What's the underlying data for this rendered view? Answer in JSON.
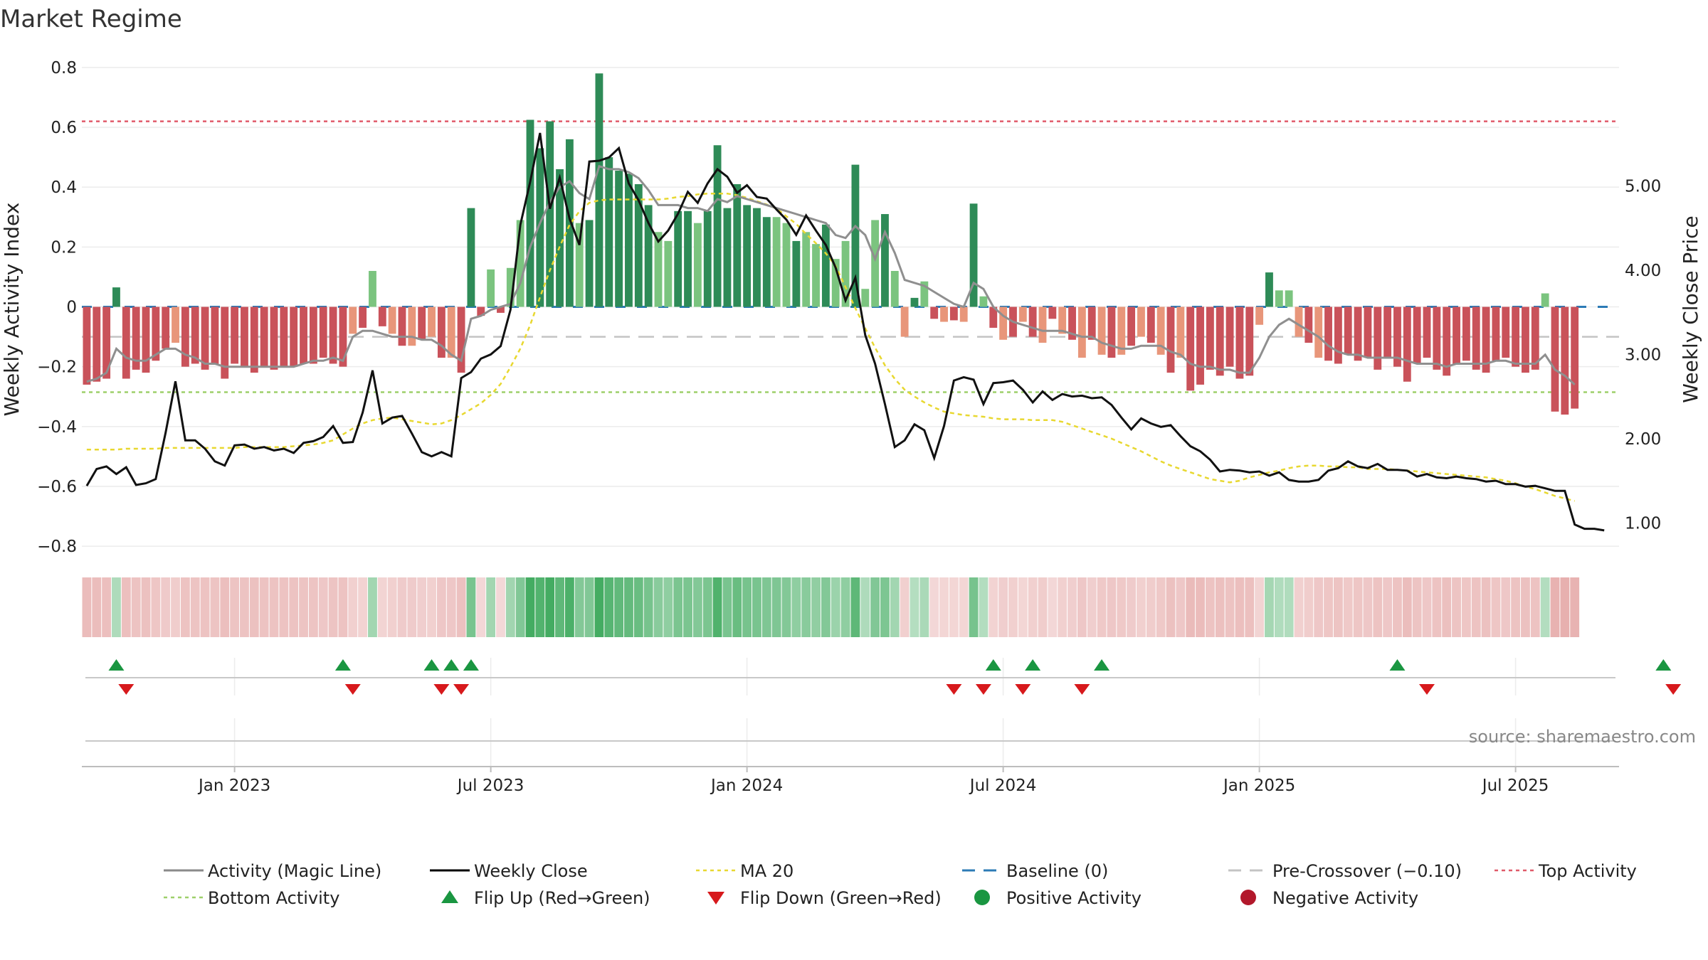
{
  "chart_data": {
    "title": "Market Regime",
    "source": "source: sharemaestro.com",
    "y_left_label": "Weekly Activity Index",
    "y_right_label": "Weekly Close Price",
    "y_left_ticks": [
      "0.8",
      "0.6",
      "0.4",
      "0.2",
      "0",
      "−0.2",
      "−0.4",
      "−0.6",
      "−0.8"
    ],
    "y_left_tick_values": [
      0.8,
      0.6,
      0.4,
      0.2,
      0,
      -0.2,
      -0.4,
      -0.6,
      -0.8
    ],
    "y_left_range": [
      -0.84,
      0.84
    ],
    "y_right_ticks": [
      "5.00",
      "4.00",
      "3.00",
      "2.00",
      "1.00"
    ],
    "y_right_tick_values": [
      5,
      4,
      3,
      2,
      1
    ],
    "y_right_range": [
      0.58,
      6.55
    ],
    "x_ticks": [
      "Jan 2023",
      "Jul 2023",
      "Jan 2024",
      "Jul 2024",
      "Jan 2025",
      "Jul 2025"
    ],
    "x_tick_weeks": [
      30,
      56,
      82,
      108,
      134,
      160
    ],
    "week_count": 156,
    "first_week_index": 15,
    "reference_lines": {
      "top_activity": 0.62,
      "bottom_activity": -0.285,
      "pre_crossover": -0.1,
      "baseline": 0
    },
    "activity": [
      -0.26,
      -0.25,
      -0.24,
      0.065,
      -0.24,
      -0.21,
      -0.22,
      -0.18,
      -0.14,
      -0.12,
      -0.2,
      -0.19,
      -0.21,
      -0.19,
      -0.24,
      -0.19,
      -0.2,
      -0.22,
      -0.2,
      -0.21,
      -0.2,
      -0.2,
      -0.19,
      -0.19,
      -0.17,
      -0.19,
      -0.2,
      -0.09,
      -0.07,
      0.12,
      -0.065,
      -0.09,
      -0.13,
      -0.13,
      -0.11,
      -0.1,
      -0.17,
      -0.17,
      -0.22,
      0.33,
      -0.03,
      0.125,
      -0.02,
      0.13,
      0.29,
      0.625,
      0.53,
      0.62,
      0.46,
      0.56,
      0.28,
      0.29,
      0.78,
      0.5,
      0.455,
      0.445,
      0.41,
      0.34,
      0.25,
      0.22,
      0.32,
      0.32,
      0.28,
      0.32,
      0.54,
      0.33,
      0.41,
      0.34,
      0.33,
      0.3,
      0.3,
      0.28,
      0.22,
      0.25,
      0.21,
      0.275,
      0.16,
      0.22,
      0.475,
      0.06,
      0.29,
      0.31,
      0.12,
      -0.1,
      0.03,
      0.085,
      -0.04,
      -0.05,
      -0.045,
      -0.05,
      0.345,
      0.035,
      -0.07,
      -0.11,
      -0.1,
      -0.05,
      -0.1,
      -0.12,
      -0.04,
      -0.09,
      -0.11,
      -0.17,
      -0.11,
      -0.16,
      -0.17,
      -0.16,
      -0.13,
      -0.1,
      -0.12,
      -0.16,
      -0.22,
      -0.17,
      -0.28,
      -0.26,
      -0.21,
      -0.23,
      -0.2,
      -0.24,
      -0.23,
      -0.06,
      0.115,
      0.055,
      0.055,
      -0.1,
      -0.12,
      -0.17,
      -0.18,
      -0.19,
      -0.16,
      -0.18,
      -0.17,
      -0.21,
      -0.17,
      -0.2,
      -0.25,
      -0.19,
      -0.17,
      -0.21,
      -0.23,
      -0.19,
      -0.18,
      -0.21,
      -0.22,
      -0.18,
      -0.17,
      -0.2,
      -0.22,
      -0.21,
      0.045,
      -0.35,
      -0.36,
      -0.34
    ],
    "magic_line": [
      -0.25,
      -0.24,
      -0.22,
      -0.14,
      -0.17,
      -0.18,
      -0.18,
      -0.16,
      -0.14,
      -0.14,
      -0.16,
      -0.17,
      -0.19,
      -0.19,
      -0.2,
      -0.2,
      -0.2,
      -0.2,
      -0.2,
      -0.2,
      -0.2,
      -0.2,
      -0.19,
      -0.18,
      -0.18,
      -0.17,
      -0.18,
      -0.1,
      -0.08,
      -0.08,
      -0.09,
      -0.1,
      -0.1,
      -0.1,
      -0.11,
      -0.11,
      -0.13,
      -0.16,
      -0.18,
      -0.04,
      -0.03,
      -0.01,
      0.0,
      0.01,
      0.08,
      0.2,
      0.28,
      0.35,
      0.4,
      0.42,
      0.38,
      0.36,
      0.47,
      0.46,
      0.46,
      0.45,
      0.43,
      0.39,
      0.34,
      0.34,
      0.34,
      0.33,
      0.33,
      0.32,
      0.36,
      0.35,
      0.37,
      0.36,
      0.35,
      0.34,
      0.33,
      0.32,
      0.31,
      0.3,
      0.29,
      0.28,
      0.24,
      0.23,
      0.27,
      0.24,
      0.16,
      0.25,
      0.18,
      0.09,
      0.08,
      0.07,
      0.05,
      0.03,
      0.01,
      0.0,
      0.08,
      0.06,
      0.0,
      -0.03,
      -0.05,
      -0.06,
      -0.07,
      -0.08,
      -0.08,
      -0.08,
      -0.09,
      -0.1,
      -0.1,
      -0.12,
      -0.13,
      -0.14,
      -0.14,
      -0.13,
      -0.13,
      -0.13,
      -0.15,
      -0.16,
      -0.19,
      -0.2,
      -0.2,
      -0.21,
      -0.21,
      -0.22,
      -0.22,
      -0.17,
      -0.1,
      -0.06,
      -0.04,
      -0.06,
      -0.08,
      -0.1,
      -0.13,
      -0.15,
      -0.16,
      -0.16,
      -0.17,
      -0.17,
      -0.17,
      -0.17,
      -0.18,
      -0.19,
      -0.19,
      -0.19,
      -0.2,
      -0.19,
      -0.19,
      -0.19,
      -0.19,
      -0.18,
      -0.18,
      -0.19,
      -0.19,
      -0.19,
      -0.16,
      -0.21,
      -0.23,
      -0.26
    ],
    "weekly_close": [
      1.44,
      1.64,
      1.67,
      1.58,
      1.66,
      1.45,
      1.47,
      1.52,
      2.07,
      2.68,
      1.98,
      1.98,
      1.88,
      1.73,
      1.68,
      1.92,
      1.93,
      1.88,
      1.9,
      1.86,
      1.88,
      1.83,
      1.95,
      1.97,
      2.02,
      2.15,
      1.95,
      1.96,
      2.31,
      2.81,
      2.18,
      2.25,
      2.27,
      2.06,
      1.84,
      1.79,
      1.84,
      1.79,
      2.72,
      2.79,
      2.95,
      3.0,
      3.1,
      3.53,
      4.54,
      5.05,
      5.63,
      4.73,
      5.1,
      4.61,
      4.3,
      5.29,
      5.3,
      5.34,
      5.45,
      5.03,
      4.83,
      4.56,
      4.34,
      4.47,
      4.67,
      4.93,
      4.8,
      5.03,
      5.2,
      5.11,
      4.92,
      5.01,
      4.87,
      4.85,
      4.72,
      4.6,
      4.42,
      4.65,
      4.47,
      4.3,
      4.03,
      3.64,
      3.91,
      3.23,
      2.89,
      2.41,
      1.9,
      1.98,
      2.17,
      2.1,
      1.77,
      2.15,
      2.69,
      2.73,
      2.7,
      2.41,
      2.66,
      2.67,
      2.69,
      2.58,
      2.43,
      2.56,
      2.46,
      2.53,
      2.5,
      2.51,
      2.48,
      2.49,
      2.4,
      2.25,
      2.11,
      2.24,
      2.18,
      2.14,
      2.16,
      2.03,
      1.91,
      1.85,
      1.75,
      1.61,
      1.63,
      1.62,
      1.6,
      1.61,
      1.56,
      1.6,
      1.51,
      1.49,
      1.49,
      1.51,
      1.62,
      1.65,
      1.73,
      1.67,
      1.65,
      1.7,
      1.63,
      1.63,
      1.62,
      1.55,
      1.58,
      1.54,
      1.53,
      1.55,
      1.53,
      1.52,
      1.49,
      1.5,
      1.46,
      1.46,
      1.43,
      1.44,
      1.41,
      1.38,
      1.38,
      0.98,
      0.93,
      0.93,
      0.91
    ],
    "ma20": [
      1.87,
      1.87,
      1.87,
      1.87,
      1.88,
      1.88,
      1.88,
      1.88,
      1.89,
      1.89,
      1.89,
      1.89,
      1.89,
      1.89,
      1.89,
      1.89,
      1.9,
      1.9,
      1.9,
      1.9,
      1.9,
      1.91,
      1.92,
      1.93,
      1.95,
      1.98,
      2.05,
      2.12,
      2.18,
      2.22,
      2.24,
      2.25,
      2.23,
      2.21,
      2.19,
      2.17,
      2.18,
      2.22,
      2.28,
      2.35,
      2.42,
      2.52,
      2.65,
      2.85,
      3.07,
      3.35,
      3.68,
      4.0,
      4.28,
      4.54,
      4.7,
      4.8,
      4.83,
      4.84,
      4.84,
      4.84,
      4.84,
      4.84,
      4.84,
      4.85,
      4.87,
      4.88,
      4.9,
      4.91,
      4.91,
      4.91,
      4.89,
      4.86,
      4.82,
      4.78,
      4.73,
      4.64,
      4.55,
      4.43,
      4.32,
      4.2,
      4.05,
      3.8,
      3.55,
      3.31,
      3.08,
      2.87,
      2.71,
      2.58,
      2.5,
      2.43,
      2.37,
      2.32,
      2.3,
      2.28,
      2.27,
      2.26,
      2.24,
      2.23,
      2.23,
      2.23,
      2.22,
      2.22,
      2.22,
      2.2,
      2.16,
      2.12,
      2.08,
      2.04,
      2.0,
      1.95,
      1.9,
      1.85,
      1.79,
      1.73,
      1.68,
      1.64,
      1.6,
      1.56,
      1.52,
      1.5,
      1.48,
      1.5,
      1.54,
      1.57,
      1.6,
      1.62,
      1.65,
      1.67,
      1.68,
      1.68,
      1.67,
      1.67,
      1.66,
      1.66,
      1.64,
      1.64,
      1.64,
      1.63,
      1.62,
      1.61,
      1.6,
      1.59,
      1.58,
      1.57,
      1.56,
      1.55,
      1.54,
      1.52,
      1.5,
      1.47,
      1.43,
      1.4,
      1.36,
      1.32,
      1.29,
      1.26
    ],
    "flip_up_weeks": [
      18,
      41,
      50,
      52,
      54,
      107,
      111,
      118,
      148,
      175
    ],
    "flip_down_weeks": [
      19,
      42,
      51,
      53,
      103,
      106,
      110,
      116,
      151,
      176
    ],
    "legend": [
      {
        "label": "Activity (Magic Line)",
        "kind": "line",
        "color": "#8a8a8a"
      },
      {
        "label": "Weekly Close",
        "kind": "line",
        "color": "#000000"
      },
      {
        "label": "MA 20",
        "kind": "dotted",
        "color": "#e8d830"
      },
      {
        "label": "Baseline (0)",
        "kind": "dashed",
        "color": "#2c7bb6"
      },
      {
        "label": "Pre-Crossover (−0.10)",
        "kind": "dashed",
        "color": "#c4c4c4"
      },
      {
        "label": "Top Activity",
        "kind": "dotted",
        "color": "#e05a6a"
      },
      {
        "label": "Bottom Activity",
        "kind": "dotted",
        "color": "#9ed06a"
      },
      {
        "label": "Flip Up (Red→Green)",
        "kind": "tri-up",
        "color": "#1a9641"
      },
      {
        "label": "Flip Down (Green→Red)",
        "kind": "tri-down",
        "color": "#d7191c"
      },
      {
        "label": "Positive Activity",
        "kind": "dot",
        "color": "#1a9641"
      },
      {
        "label": "Negative Activity",
        "kind": "dot",
        "color": "#b2182b"
      }
    ],
    "colors": {
      "pos_strong": "#2e8b57",
      "pos_light": "#7bc47f",
      "neg_strong": "#c9525a",
      "neg_light": "#e8967a",
      "close": "#111111",
      "magic": "#8f8f8f",
      "ma20": "#e8d830",
      "top": "#e05a6a",
      "bottom": "#9ed06a",
      "baseline": "#2c7bb6",
      "pre": "#c4c4c4"
    }
  }
}
